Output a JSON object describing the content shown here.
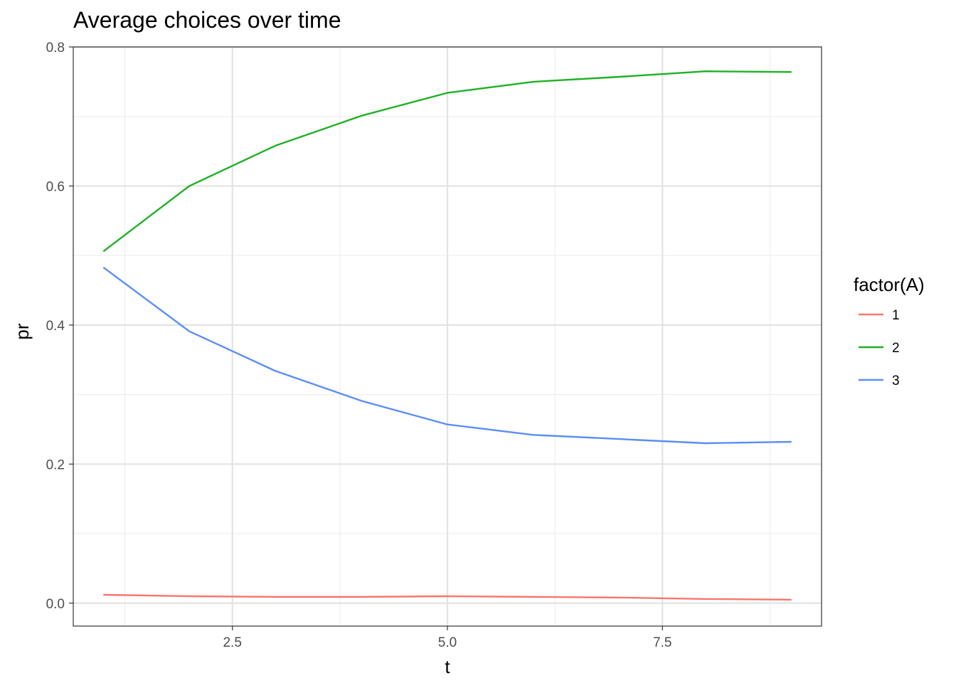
{
  "chart_data": {
    "type": "line",
    "title": "Average choices over time",
    "xlabel": "t",
    "ylabel": "pr",
    "xlim": [
      0.65,
      9.35
    ],
    "ylim": [
      -0.033,
      0.8
    ],
    "x_ticks": [
      2.5,
      5.0,
      7.5
    ],
    "x_tick_labels": [
      "2.5",
      "5.0",
      "7.5"
    ],
    "x_minor_ticks": [
      1.25,
      3.75,
      6.25,
      8.75
    ],
    "y_ticks": [
      0.0,
      0.2,
      0.4,
      0.6,
      0.8
    ],
    "y_tick_labels": [
      "0.0",
      "0.2",
      "0.4",
      "0.6",
      "0.8"
    ],
    "y_minor_ticks": [
      0.1,
      0.3,
      0.5,
      0.7
    ],
    "grid": true,
    "legend": {
      "title": "factor(A)",
      "position": "right"
    },
    "x": [
      1,
      2,
      3,
      4,
      5,
      6,
      7,
      8,
      9
    ],
    "series": [
      {
        "name": "1",
        "color": "#F8766D",
        "values": [
          0.012,
          0.01,
          0.009,
          0.009,
          0.01,
          0.009,
          0.008,
          0.006,
          0.005
        ]
      },
      {
        "name": "2",
        "color": "#1FB024",
        "values": [
          0.506,
          0.6,
          0.658,
          0.701,
          0.734,
          0.75,
          0.757,
          0.765,
          0.764
        ]
      },
      {
        "name": "3",
        "color": "#5B8EF5",
        "values": [
          0.483,
          0.391,
          0.334,
          0.291,
          0.257,
          0.242,
          0.236,
          0.23,
          0.232
        ]
      }
    ]
  }
}
